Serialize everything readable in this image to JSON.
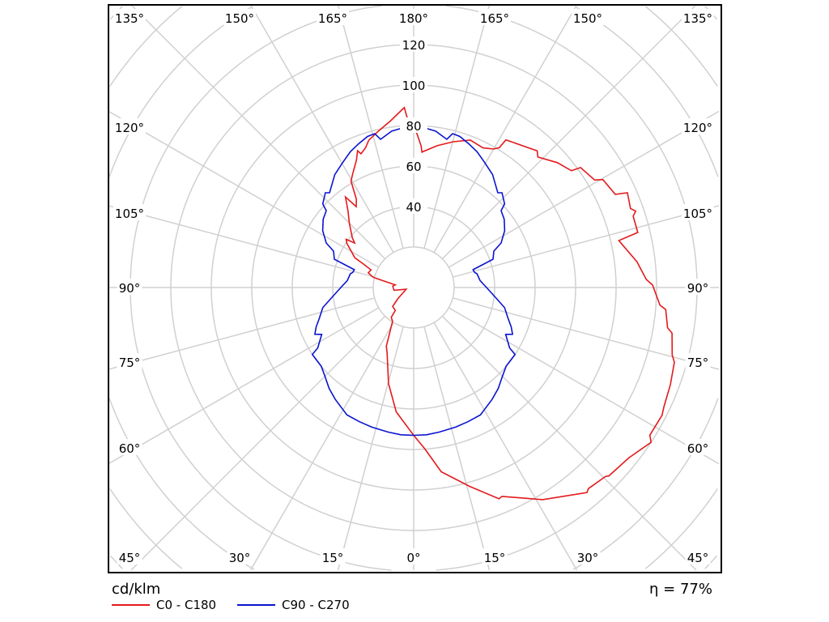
{
  "chart_data": {
    "type": "polar-line",
    "title": "",
    "unit_label": "cd/klm",
    "efficiency_label": "η = 77%",
    "radial_ticks": [
      40,
      60,
      80,
      100,
      120
    ],
    "radial_rings": [
      20,
      40,
      60,
      80,
      100,
      120,
      140,
      160,
      180,
      200
    ],
    "radial_min_shown": 20,
    "angle_step_deg": 15,
    "angle_labels": {
      "top": [
        "135°",
        "150°",
        "165°",
        "180°",
        "165°",
        "150°",
        "135°"
      ],
      "left": [
        "120°",
        "105°",
        "90°",
        "75°",
        "60°"
      ],
      "right": [
        "120°",
        "105°",
        "90°",
        "75°",
        "60°"
      ],
      "bottom": [
        "45°",
        "30°",
        "15°",
        "0°",
        "15°",
        "30°",
        "45°"
      ]
    },
    "grid": true,
    "legend_position": "bottom-left",
    "series": [
      {
        "name": "C0 - C180",
        "color": "#e31a1c",
        "note": "angle signed: negative = left half (C180), positive = right half (C0), 0 = nadir",
        "points": [
          [
            0,
            73
          ],
          [
            -8,
            62
          ],
          [
            -14.7,
            49
          ],
          [
            -22,
            35
          ],
          [
            -25,
            32
          ],
          [
            -32,
            19.7
          ],
          [
            -37,
            18.4
          ],
          [
            -38.7,
            14.5
          ],
          [
            -48,
            14
          ],
          [
            -55,
            9.4
          ],
          [
            -77,
            3.8
          ],
          [
            -82,
            9.8
          ],
          [
            -93.7,
            10.4
          ],
          [
            -98,
            9.2
          ],
          [
            -103.8,
            19.6
          ],
          [
            -104.6,
            21
          ],
          [
            -108,
            23.6
          ],
          [
            -112.4,
            22.8
          ],
          [
            -114.9,
            27
          ],
          [
            -116.8,
            32.6
          ],
          [
            -123.6,
            39.7
          ],
          [
            -125.5,
            41
          ],
          [
            -127,
            36.5
          ],
          [
            -129,
            39
          ],
          [
            -135,
            45
          ],
          [
            -139.5,
            50
          ],
          [
            -143,
            56
          ],
          [
            -144.6,
            49
          ],
          [
            -147,
            52
          ],
          [
            -149.5,
            61
          ],
          [
            -152,
            64
          ],
          [
            -155.8,
            69
          ],
          [
            -157.7,
            73
          ],
          [
            -158.5,
            71
          ],
          [
            -161,
            73
          ],
          [
            -163,
            76
          ],
          [
            -167,
            79
          ],
          [
            -172,
            83
          ],
          [
            -177,
            89
          ],
          [
            -177.8,
            84
          ],
          [
            178.8,
            76
          ],
          [
            177,
            70
          ],
          [
            176.5,
            67
          ],
          [
            170.6,
            71
          ],
          [
            164.8,
            74.6
          ],
          [
            159,
            78
          ],
          [
            153.6,
            77
          ],
          [
            150,
            79
          ],
          [
            148.5,
            81
          ],
          [
            148,
            86
          ],
          [
            137.9,
            91
          ],
          [
            136.4,
            89
          ],
          [
            131,
            94
          ],
          [
            126.5,
            97
          ],
          [
            125.7,
            101.5
          ],
          [
            120.7,
            104
          ],
          [
            119.7,
            107.6
          ],
          [
            114.8,
            109.7
          ],
          [
            113.9,
            115.5
          ],
          [
            110,
            114
          ],
          [
            109,
            116
          ],
          [
            108,
            114
          ],
          [
            103.8,
            114
          ],
          [
            102.9,
            104
          ],
          [
            96.6,
            111
          ],
          [
            92,
            115
          ],
          [
            90.6,
            118
          ],
          [
            85.9,
            122
          ],
          [
            85,
            125
          ],
          [
            81,
            127
          ],
          [
            80,
            129.6
          ],
          [
            75.4,
            132
          ],
          [
            74,
            134
          ],
          [
            69.3,
            135.6
          ],
          [
            64.4,
            137
          ],
          [
            62.8,
            138
          ],
          [
            58,
            137.6
          ],
          [
            56.9,
            140
          ],
          [
            51.7,
            135.6
          ],
          [
            46,
            134
          ],
          [
            45.5,
            133
          ],
          [
            41,
            131.6
          ],
          [
            40.2,
            132.6
          ],
          [
            31.3,
            122.6
          ],
          [
            22.9,
            112
          ],
          [
            22,
            112.5
          ],
          [
            15.7,
            102
          ],
          [
            8.5,
            92
          ],
          [
            4,
            80
          ],
          [
            0,
            73
          ]
        ]
      },
      {
        "name": "C90 - C270",
        "color": "#0a14d0",
        "note": "symmetric about the vertical axis; gamma 0..180",
        "points": [
          [
            0,
            73
          ],
          [
            5,
            73
          ],
          [
            10,
            72.5
          ],
          [
            16.7,
            72
          ],
          [
            22,
            71.5
          ],
          [
            27.7,
            71
          ],
          [
            29.5,
            70
          ],
          [
            35,
            67.5
          ],
          [
            40,
            65
          ],
          [
            45,
            62
          ],
          [
            49.6,
            60
          ],
          [
            56.6,
            60
          ],
          [
            57.8,
            56
          ],
          [
            63,
            51
          ],
          [
            64.7,
            54
          ],
          [
            68,
            52
          ],
          [
            72,
            49
          ],
          [
            77.5,
            46
          ],
          [
            84,
            40
          ],
          [
            90,
            36
          ],
          [
            96,
            33
          ],
          [
            102.3,
            32
          ],
          [
            104,
            31
          ],
          [
            106.7,
            30.6
          ],
          [
            109.6,
            41.6
          ],
          [
            114.4,
            43.5
          ],
          [
            117,
            48.5
          ],
          [
            122,
            53
          ],
          [
            127,
            56
          ],
          [
            131.3,
            57.5
          ],
          [
            132.6,
            61
          ],
          [
            137,
            64
          ],
          [
            138.4,
            62.6
          ],
          [
            145,
            68
          ],
          [
            150.4,
            71
          ],
          [
            155,
            74
          ],
          [
            159,
            76
          ],
          [
            163,
            78
          ],
          [
            165.8,
            78.4
          ],
          [
            167.4,
            75
          ],
          [
            172,
            78
          ],
          [
            176,
            79
          ],
          [
            180,
            80
          ]
        ]
      }
    ]
  }
}
